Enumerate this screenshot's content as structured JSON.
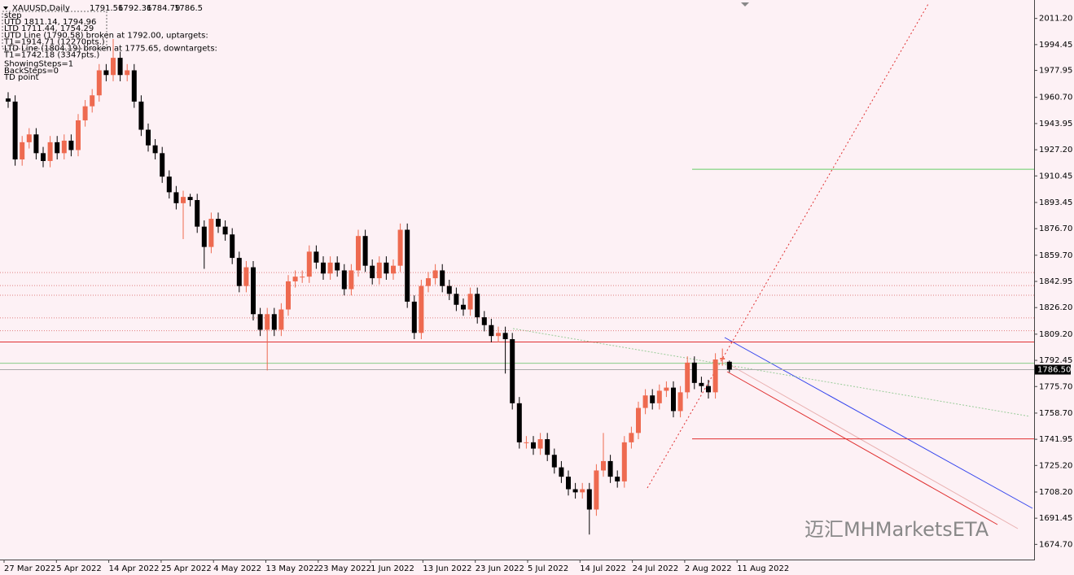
{
  "chart_data": {
    "type": "candlestick",
    "title": "XAUUSD,Daily",
    "header_values": {
      "open": 1791.56,
      "high": 1792.36,
      "low": 1784.79,
      "close": 1786.5
    },
    "info_lines": [
      "step",
      "UTD 1811.14, 1794.96",
      "LTD 1711.44, 1754.29",
      "UTD Line (1790.58) broken at 1792.00, uptargets:",
      "T1=1914.71 (12270pts.)",
      "LTD Line (1804.19) broken at 1775.65, downtargets:",
      "T1=1742.18 (3347pts.)",
      "ShowingSteps=1",
      "BackSteps=0",
      "TD point"
    ],
    "watermark": "迈汇MHMarketsETA",
    "x_labels": [
      "27 Mar 2022",
      "5 Apr 2022",
      "14 Apr 2022",
      "25 Apr 2022",
      "4 May 2022",
      "13 May 2022",
      "23 May 2022",
      "1 Jun 2022",
      "13 Jun 2022",
      "23 Jun 2022",
      "5 Jul 2022",
      "14 Jul 2022",
      "24 Jul 2022",
      "2 Aug 2022",
      "11 Aug 2022"
    ],
    "open": [
      1960,
      1958,
      1921,
      1932,
      1937,
      1925,
      1920,
      1932,
      1925,
      1933,
      1927,
      1946,
      1955,
      1962,
      1978,
      1975,
      1986,
      1975,
      1978,
      1958,
      1940,
      1930,
      1925,
      1910,
      1900,
      1893,
      1897,
      1895,
      1878,
      1865,
      1883,
      1878,
      1873,
      1858,
      1840,
      1852,
      1822,
      1812,
      1822,
      1812,
      1825,
      1843,
      1846,
      1846,
      1862,
      1855,
      1848,
      1855,
      1850,
      1838,
      1850,
      1872,
      1853,
      1845,
      1855,
      1848,
      1853,
      1876,
      1830,
      1810,
      1840,
      1845,
      1850,
      1840,
      1835,
      1828,
      1825,
      1835,
      1820,
      1815,
      1808,
      1810,
      1806,
      1765,
      1740,
      1740,
      1736,
      1742,
      1732,
      1724,
      1718,
      1710,
      1708,
      1710,
      1697,
      1722,
      1728,
      1718,
      1715,
      1740,
      1746,
      1762,
      1770,
      1765,
      1773,
      1775,
      1760,
      1772,
      1791,
      1778,
      1776,
      1772,
      1793,
      1791.56
    ],
    "high": [
      1964,
      1962,
      1936,
      1941,
      1941,
      1929,
      1936,
      1936,
      1937,
      1937,
      1950,
      1959,
      1966,
      1982,
      1982,
      1998,
      1990,
      1982,
      1982,
      1962,
      1944,
      1934,
      1929,
      1914,
      1904,
      1901,
      1899,
      1899,
      1882,
      1887,
      1887,
      1882,
      1877,
      1862,
      1856,
      1856,
      1826,
      1826,
      1826,
      1829,
      1847,
      1850,
      1850,
      1866,
      1866,
      1859,
      1859,
      1859,
      1854,
      1854,
      1876,
      1876,
      1857,
      1859,
      1859,
      1857,
      1880,
      1880,
      1834,
      1844,
      1849,
      1854,
      1854,
      1844,
      1839,
      1832,
      1839,
      1839,
      1824,
      1819,
      1814,
      1814,
      1810,
      1769,
      1744,
      1744,
      1746,
      1746,
      1736,
      1728,
      1722,
      1714,
      1714,
      1714,
      1726,
      1746,
      1732,
      1722,
      1744,
      1750,
      1766,
      1774,
      1774,
      1777,
      1779,
      1779,
      1776,
      1795,
      1795,
      1782,
      1780,
      1797,
      1800,
      1792.36
    ],
    "low": [
      1954,
      1917,
      1917,
      1928,
      1921,
      1916,
      1916,
      1921,
      1921,
      1923,
      1923,
      1942,
      1951,
      1958,
      1971,
      1971,
      1971,
      1971,
      1954,
      1936,
      1926,
      1921,
      1906,
      1896,
      1889,
      1870,
      1891,
      1874,
      1851,
      1861,
      1874,
      1869,
      1854,
      1836,
      1836,
      1818,
      1808,
      1786,
      1808,
      1808,
      1821,
      1839,
      1842,
      1842,
      1851,
      1844,
      1844,
      1846,
      1834,
      1834,
      1846,
      1849,
      1841,
      1841,
      1844,
      1844,
      1849,
      1826,
      1806,
      1806,
      1836,
      1841,
      1836,
      1831,
      1824,
      1821,
      1821,
      1816,
      1811,
      1804,
      1804,
      1784,
      1761,
      1736,
      1736,
      1732,
      1732,
      1728,
      1720,
      1714,
      1706,
      1704,
      1704,
      1681,
      1693,
      1718,
      1714,
      1711,
      1711,
      1736,
      1742,
      1758,
      1761,
      1761,
      1769,
      1756,
      1756,
      1768,
      1774,
      1772,
      1768,
      1768,
      1789,
      1784.79
    ],
    "close": [
      1958,
      1921,
      1932,
      1937,
      1925,
      1920,
      1932,
      1925,
      1933,
      1927,
      1946,
      1955,
      1962,
      1978,
      1975,
      1986,
      1975,
      1978,
      1958,
      1940,
      1930,
      1925,
      1910,
      1900,
      1893,
      1897,
      1895,
      1878,
      1865,
      1883,
      1878,
      1873,
      1858,
      1840,
      1852,
      1822,
      1812,
      1822,
      1812,
      1825,
      1843,
      1846,
      1846,
      1862,
      1855,
      1848,
      1855,
      1850,
      1838,
      1850,
      1872,
      1853,
      1845,
      1855,
      1848,
      1853,
      1876,
      1830,
      1810,
      1840,
      1845,
      1850,
      1840,
      1835,
      1828,
      1825,
      1835,
      1820,
      1815,
      1808,
      1810,
      1806,
      1765,
      1740,
      1740,
      1736,
      1742,
      1732,
      1724,
      1718,
      1710,
      1708,
      1710,
      1697,
      1722,
      1728,
      1718,
      1715,
      1740,
      1746,
      1762,
      1770,
      1765,
      1773,
      1775,
      1760,
      1772,
      1791,
      1778,
      1776,
      1772,
      1793,
      1794,
      1786.5
    ],
    "up_color": "#ee6a50",
    "down_color": "#000000",
    "ylim": [
      1665,
      2023
    ],
    "yticks": [
      {
        "value": 2011.2,
        "label": "2011.20"
      },
      {
        "value": 1994.45,
        "label": "1994.45"
      },
      {
        "value": 1977.95,
        "label": "1977.95"
      },
      {
        "value": 1960.7,
        "label": "1960.70"
      },
      {
        "value": 1943.95,
        "label": "1943.95"
      },
      {
        "value": 1927.2,
        "label": "1927.20"
      },
      {
        "value": 1910.45,
        "label": "1910.45"
      },
      {
        "value": 1893.45,
        "label": "1893.45"
      },
      {
        "value": 1876.7,
        "label": "1876.70"
      },
      {
        "value": 1859.7,
        "label": "1859.70"
      },
      {
        "value": 1842.95,
        "label": "1842.95"
      },
      {
        "value": 1826.2,
        "label": "1826.20"
      },
      {
        "value": 1809.2,
        "label": "1809.20"
      },
      {
        "value": 1792.45,
        "label": "1792.45"
      },
      {
        "value": 1775.7,
        "label": "1775.70"
      },
      {
        "value": 1758.7,
        "label": "1758.70"
      },
      {
        "value": 1741.95,
        "label": "1741.95"
      },
      {
        "value": 1725.2,
        "label": "1725.20"
      },
      {
        "value": 1708.2,
        "label": "1708.20"
      },
      {
        "value": 1691.45,
        "label": "1691.45"
      },
      {
        "value": 1674.7,
        "label": "1674.70"
      }
    ],
    "current_price": {
      "value": 1786.5,
      "label": "1786.50"
    },
    "levels": [
      {
        "value": 1914.71,
        "color": "#66cc66",
        "style": "solid",
        "from": "right"
      },
      {
        "value": 1742.18,
        "color": "#e03030",
        "style": "solid",
        "from": "right"
      },
      {
        "value": 1804.19,
        "color": "#e03030",
        "style": "solid",
        "from": "full"
      },
      {
        "value": 1790.58,
        "color": "#88cc88",
        "style": "solid",
        "from": "full"
      },
      {
        "value": 1848.6,
        "color": "#e08080",
        "style": "dotted",
        "from": "full"
      },
      {
        "value": 1840.3,
        "color": "#e08080",
        "style": "dotted",
        "from": "full"
      },
      {
        "value": 1834.1,
        "color": "#e08080",
        "style": "dotted",
        "from": "full"
      },
      {
        "value": 1819.6,
        "color": "#e08080",
        "style": "dotted",
        "from": "full"
      },
      {
        "value": 1811.4,
        "color": "#e08080",
        "style": "dotted",
        "from": "full"
      }
    ]
  }
}
